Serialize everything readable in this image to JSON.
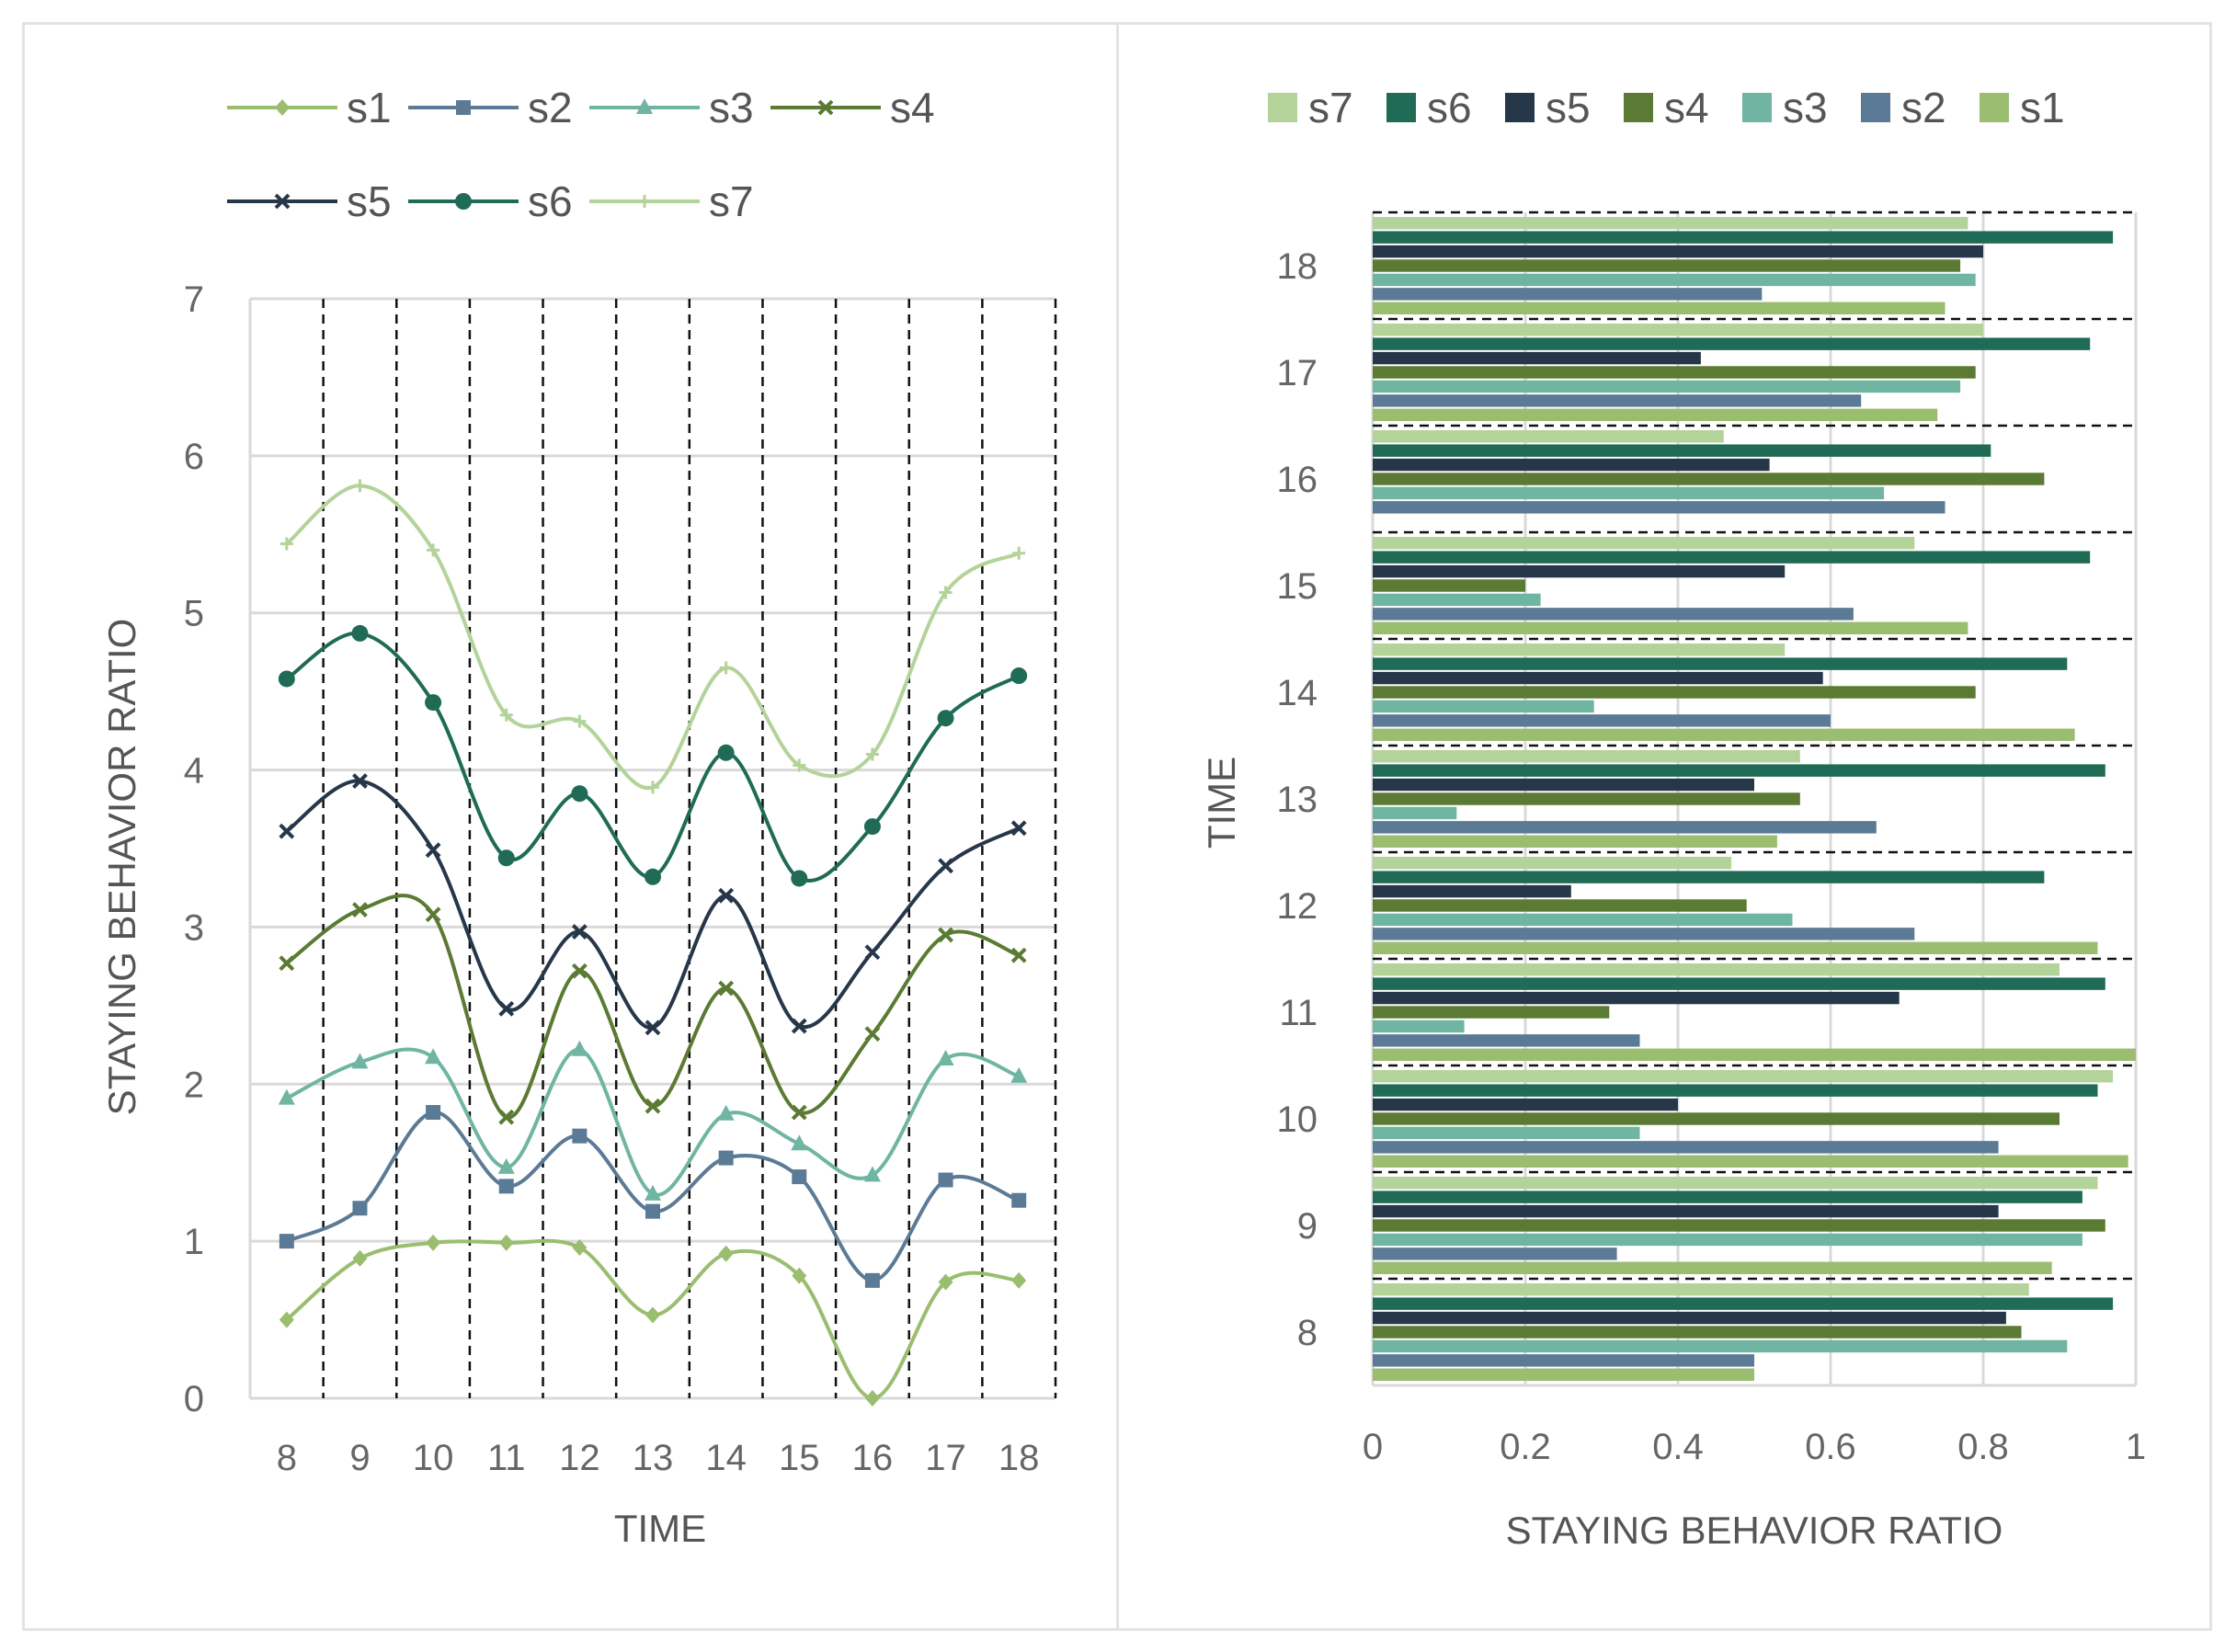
{
  "chart_data": [
    {
      "type": "line",
      "smooth": true,
      "x": [
        8,
        9,
        10,
        11,
        12,
        13,
        14,
        15,
        16,
        17,
        18
      ],
      "series": [
        {
          "name": "s1",
          "color": "#9bbd6f",
          "marker": "diamond",
          "values": [
            0.5,
            0.89,
            0.99,
            0.99,
            0.96,
            0.53,
            0.92,
            0.78,
            0.0,
            0.74,
            0.75
          ]
        },
        {
          "name": "s2",
          "color": "#5b7a95",
          "marker": "square",
          "values": [
            1.0,
            1.21,
            1.82,
            1.35,
            1.67,
            1.19,
            1.53,
            1.41,
            0.75,
            1.39,
            1.26
          ]
        },
        {
          "name": "s3",
          "color": "#6fb5a1",
          "marker": "triangle",
          "values": [
            1.91,
            2.14,
            2.17,
            1.47,
            2.22,
            1.3,
            1.81,
            1.62,
            1.42,
            2.16,
            2.05
          ]
        },
        {
          "name": "s4",
          "color": "#5b7a33",
          "marker": "x",
          "values": [
            2.77,
            3.11,
            3.08,
            1.79,
            2.72,
            1.86,
            2.61,
            1.82,
            2.32,
            2.95,
            2.82
          ]
        },
        {
          "name": "s5",
          "color": "#26374a",
          "marker": "x",
          "values": [
            3.61,
            3.93,
            3.49,
            2.48,
            2.97,
            2.36,
            3.2,
            2.37,
            2.84,
            3.39,
            3.63
          ]
        },
        {
          "name": "s6",
          "color": "#1f6b55",
          "marker": "circle",
          "values": [
            4.58,
            4.87,
            4.43,
            3.44,
            3.85,
            3.32,
            4.11,
            3.31,
            3.64,
            4.33,
            4.6
          ]
        },
        {
          "name": "s7",
          "color": "#b3d39a",
          "marker": "plus",
          "values": [
            5.44,
            5.81,
            5.4,
            4.35,
            4.31,
            3.89,
            4.65,
            4.03,
            4.1,
            5.13,
            5.38
          ]
        }
      ],
      "xlabel": "TIME",
      "ylabel": "STAYING BEHAVIOR RATIO",
      "ylim": [
        0,
        7
      ],
      "yticks": [
        0,
        1,
        2,
        3,
        4,
        5,
        6,
        7
      ],
      "grid": "horizontal gridlines plus dashed vertical separators",
      "legend": "top",
      "legend_order": [
        "s1",
        "s2",
        "s3",
        "s4",
        "s5",
        "s6",
        "s7"
      ]
    },
    {
      "type": "bar",
      "orientation": "horizontal",
      "categories": [
        8,
        9,
        10,
        11,
        12,
        13,
        14,
        15,
        16,
        17,
        18
      ],
      "series": [
        {
          "name": "s1",
          "color": "#9bbd6f",
          "values": [
            0.5,
            0.89,
            0.99,
            1.0,
            0.95,
            0.53,
            0.92,
            0.78,
            0.0,
            0.74,
            0.75
          ]
        },
        {
          "name": "s2",
          "color": "#5b7a95",
          "values": [
            0.5,
            0.32,
            0.82,
            0.35,
            0.71,
            0.66,
            0.6,
            0.63,
            0.75,
            0.64,
            0.51
          ]
        },
        {
          "name": "s3",
          "color": "#6fb5a1",
          "values": [
            0.91,
            0.93,
            0.35,
            0.12,
            0.55,
            0.11,
            0.29,
            0.22,
            0.67,
            0.77,
            0.79
          ]
        },
        {
          "name": "s4",
          "color": "#5b7a33",
          "values": [
            0.85,
            0.96,
            0.9,
            0.31,
            0.49,
            0.56,
            0.79,
            0.2,
            0.88,
            0.79,
            0.77
          ]
        },
        {
          "name": "s5",
          "color": "#26374a",
          "values": [
            0.83,
            0.82,
            0.4,
            0.69,
            0.26,
            0.5,
            0.59,
            0.54,
            0.52,
            0.43,
            0.8
          ]
        },
        {
          "name": "s6",
          "color": "#1f6b55",
          "values": [
            0.97,
            0.93,
            0.95,
            0.96,
            0.88,
            0.96,
            0.91,
            0.94,
            0.81,
            0.94,
            0.97
          ]
        },
        {
          "name": "s7",
          "color": "#b3d39a",
          "values": [
            0.86,
            0.95,
            0.97,
            0.9,
            0.47,
            0.56,
            0.54,
            0.71,
            0.46,
            0.8,
            0.78
          ]
        }
      ],
      "xlabel": "STAYING BEHAVIOR RATIO",
      "ylabel": "TIME",
      "xlim": [
        0,
        1
      ],
      "xticks": [
        0,
        0.2,
        0.4,
        0.6,
        0.8,
        1
      ],
      "grid": "vertical gridlines plus dashed horizontal separators",
      "legend": "top",
      "legend_order": [
        "s7",
        "s6",
        "s5",
        "s4",
        "s3",
        "s2",
        "s1"
      ]
    }
  ]
}
